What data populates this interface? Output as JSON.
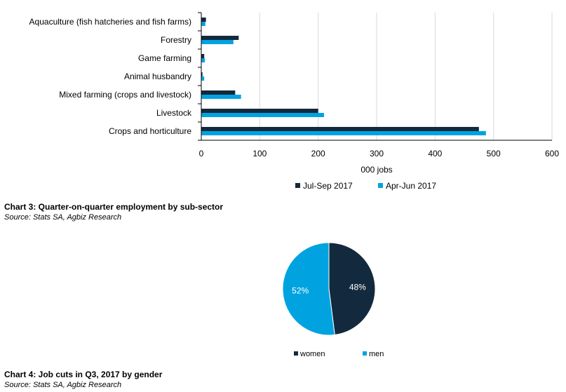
{
  "chart_data": [
    {
      "type": "bar",
      "orientation": "horizontal",
      "categories": [
        "Aquaculture (fish hatcheries and fish farms)",
        "Forestry",
        "Game farming",
        "Animal husbandry",
        "Mixed farming (crops and livestock)",
        "Livestock",
        "Crops and horticulture"
      ],
      "series": [
        {
          "name": "Jul-Sep 2017",
          "color": "#13293d",
          "values": [
            8,
            64,
            5,
            2,
            58,
            200,
            475
          ]
        },
        {
          "name": "Apr-Jun 2017",
          "color": "#00a3e0",
          "values": [
            7,
            55,
            6,
            5,
            68,
            210,
            487
          ]
        }
      ],
      "xlabel": "000 jobs",
      "xlim": [
        0,
        600
      ],
      "xticks": [
        0,
        100,
        200,
        300,
        400,
        500,
        600
      ],
      "grid": true,
      "legend_position": "bottom"
    },
    {
      "type": "pie",
      "categories": [
        "women",
        "men"
      ],
      "values": [
        48,
        52
      ],
      "labels": [
        "48%",
        "52%"
      ],
      "colors": [
        "#13293d",
        "#00a3e0"
      ],
      "legend_position": "bottom"
    }
  ],
  "captions": {
    "chart3_title": "Chart 3: Quarter-on-quarter employment by sub-sector",
    "chart3_source": "Source: Stats SA, Agbiz Research",
    "chart4_title": "Chart 4: Job cuts in Q3, 2017 by gender",
    "chart4_source": "Source: Stats SA, Agbiz Research"
  }
}
